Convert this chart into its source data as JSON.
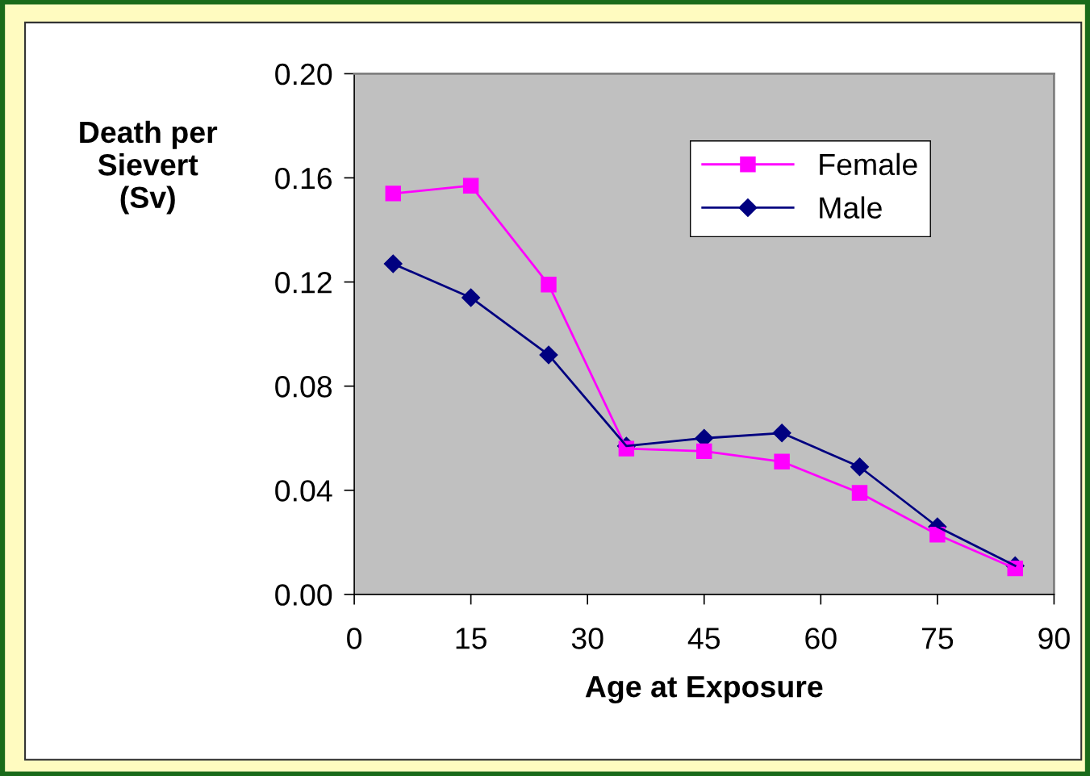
{
  "chart_data": {
    "type": "line",
    "xlabel": "Age at Exposure",
    "ylabel": "Death per\nSievert\n(Sv)",
    "x": [
      5,
      15,
      25,
      35,
      45,
      55,
      65,
      75,
      85
    ],
    "series": [
      {
        "name": "Female",
        "color": "#ff00ff",
        "marker": "square",
        "values": [
          0.154,
          0.157,
          0.119,
          0.056,
          0.055,
          0.051,
          0.039,
          0.023,
          0.01
        ]
      },
      {
        "name": "Male",
        "color": "#000080",
        "marker": "diamond",
        "values": [
          0.127,
          0.114,
          0.092,
          0.057,
          0.06,
          0.062,
          0.049,
          0.026,
          0.011
        ]
      }
    ],
    "xlim": [
      0,
      90
    ],
    "xticks": [
      0,
      15,
      30,
      45,
      60,
      75,
      90
    ],
    "ylim": [
      0,
      0.2
    ],
    "yticks": [
      {
        "value": 0,
        "label": "0.00"
      },
      {
        "value": 0.04,
        "label": "0.04"
      },
      {
        "value": 0.08,
        "label": "0.08"
      },
      {
        "value": 0.12,
        "label": "0.12"
      },
      {
        "value": 0.16,
        "label": "0.16"
      },
      {
        "value": 0.2,
        "label": "0.20"
      }
    ],
    "grid": false,
    "legend": "top right",
    "line_style": "solid"
  }
}
